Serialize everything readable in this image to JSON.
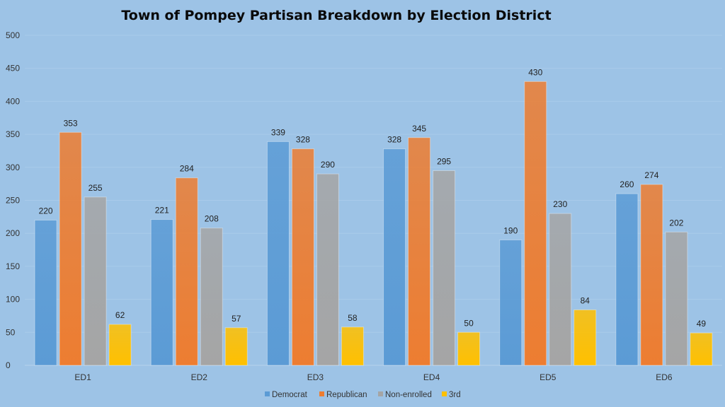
{
  "chart_data": {
    "type": "bar",
    "title": "Town of Pompey Partisan Breakdown by Election District",
    "xlabel": "",
    "ylabel": "",
    "ylim": [
      0,
      500
    ],
    "yticks": [
      0,
      50,
      100,
      150,
      200,
      250,
      300,
      350,
      400,
      450,
      500
    ],
    "grid": true,
    "legend_position": "bottom",
    "categories": [
      "ED1",
      "ED2",
      "ED3",
      "ED4",
      "ED5",
      "ED6"
    ],
    "series": [
      {
        "name": "Democrat",
        "color": "#5b9bd5",
        "values": [
          220,
          221,
          339,
          328,
          190,
          260
        ]
      },
      {
        "name": "Republican",
        "color": "#ed7d31",
        "values": [
          353,
          284,
          328,
          345,
          430,
          274
        ]
      },
      {
        "name": "Non-enrolled",
        "color": "#a5a5a5",
        "values": [
          255,
          208,
          290,
          295,
          230,
          202
        ]
      },
      {
        "name": "3rd",
        "color": "#ffc000",
        "values": [
          62,
          57,
          58,
          50,
          84,
          49
        ]
      }
    ]
  }
}
